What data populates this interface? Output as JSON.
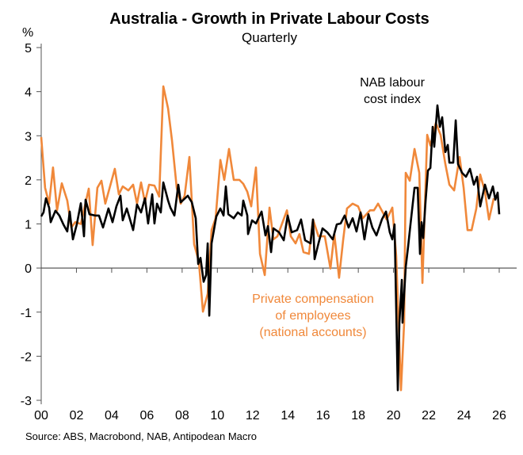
{
  "chart_data": {
    "type": "line",
    "title": "Australia - Growth in Private Labour Costs",
    "subtitle": "Quarterly",
    "ylabel": "%",
    "xlabel": "",
    "ylim": [
      -3,
      5
    ],
    "xlim": [
      2000,
      2026
    ],
    "y_ticks": [
      "5",
      "4",
      "3",
      "2",
      "1",
      "0",
      "-1",
      "-2",
      "-3"
    ],
    "y_tick_values": [
      5,
      4,
      3,
      2,
      1,
      0,
      -1,
      -2,
      -3
    ],
    "x_ticks": [
      "00",
      "02",
      "04",
      "06",
      "08",
      "10",
      "12",
      "14",
      "16",
      "18",
      "20",
      "22",
      "24",
      "26"
    ],
    "x_tick_values": [
      2000,
      2002,
      2004,
      2006,
      2008,
      2010,
      2012,
      2014,
      2016,
      2018,
      2020,
      2022,
      2024,
      2026
    ],
    "grid": false,
    "source": "Source: ABS, Macrobond, NAB, Antipodean Macro",
    "series": [
      {
        "name": "Private compensation of employees (national accounts)",
        "label_lines": [
          "Private compensation",
          "of employees",
          "(national accounts)"
        ],
        "color": "#f0883a",
        "x": [
          2000.0,
          2000.22,
          2000.45,
          2000.67,
          2000.9,
          2001.17,
          2001.48,
          2001.71,
          2001.93,
          2002.25,
          2002.7,
          2002.92,
          2003.19,
          2003.42,
          2003.64,
          2004.18,
          2004.41,
          2004.63,
          2004.95,
          2005.22,
          2005.44,
          2005.67,
          2005.89,
          2006.12,
          2006.43,
          2006.7,
          2006.93,
          2007.2,
          2007.42,
          2007.69,
          2007.92,
          2008.14,
          2008.41,
          2008.68,
          2008.95,
          2009.18,
          2009.45,
          2009.67,
          2009.9,
          2010.17,
          2010.39,
          2010.66,
          2010.93,
          2011.25,
          2011.47,
          2011.7,
          2011.92,
          2012.19,
          2012.42,
          2012.69,
          2012.96,
          2013.18,
          2013.41,
          2013.95,
          2014.17,
          2014.44,
          2014.66,
          2014.89,
          2015.2,
          2015.43,
          2015.74,
          2016.1,
          2016.42,
          2016.64,
          2016.91,
          2017.14,
          2017.36,
          2017.68,
          2017.99,
          2018.26,
          2018.67,
          2018.89,
          2019.12,
          2019.39,
          2019.61,
          2019.93,
          2020.15,
          2020.42,
          2020.6,
          2020.69,
          2020.92,
          2021.19,
          2021.46,
          2021.64,
          2021.91,
          2022.09,
          2022.4,
          2022.67,
          2022.94,
          2023.17,
          2023.44,
          2023.75,
          2023.98,
          2024.2,
          2024.43,
          2024.7,
          2024.92,
          2025.19,
          2025.42,
          2025.69
        ],
        "values": [
          2.97,
          1.82,
          1.46,
          2.28,
          1.31,
          1.92,
          1.53,
          0.92,
          1.04,
          1.0,
          1.8,
          0.52,
          1.82,
          1.98,
          1.46,
          2.25,
          1.67,
          1.85,
          1.76,
          1.89,
          1.46,
          1.94,
          1.49,
          1.89,
          1.87,
          1.62,
          4.12,
          3.62,
          2.9,
          1.82,
          1.46,
          1.64,
          2.52,
          0.54,
          0.14,
          -0.99,
          -0.58,
          0.86,
          1.13,
          2.45,
          2.0,
          2.7,
          2.0,
          2.0,
          1.91,
          1.73,
          1.4,
          2.28,
          0.32,
          -0.16,
          1.37,
          0.65,
          0.72,
          1.31,
          0.72,
          0.56,
          0.77,
          0.36,
          0.32,
          1.1,
          0.72,
          0.72,
          -0.01,
          0.77,
          -0.22,
          0.63,
          1.35,
          1.46,
          1.4,
          1.13,
          1.31,
          1.31,
          1.46,
          1.26,
          1.1,
          1.37,
          0.27,
          -2.77,
          -1.24,
          2.16,
          1.98,
          2.7,
          2.16,
          -0.34,
          3.02,
          2.78,
          3.29,
          3.02,
          2.36,
          1.89,
          1.76,
          2.52,
          1.82,
          0.86,
          0.86,
          1.35,
          2.12,
          1.73,
          1.1,
          1.58
        ]
      },
      {
        "name": "NAB labour cost index",
        "label_lines": [
          "NAB labour",
          "cost index"
        ],
        "color": "#000000",
        "x": [
          2000.0,
          2000.13,
          2000.27,
          2000.45,
          2000.54,
          2000.81,
          2001.03,
          2001.26,
          2001.48,
          2001.62,
          2001.8,
          2002.02,
          2002.25,
          2002.43,
          2002.52,
          2002.74,
          2003.06,
          2003.28,
          2003.51,
          2003.82,
          2004.05,
          2004.27,
          2004.5,
          2004.63,
          2004.86,
          2005.22,
          2005.44,
          2005.67,
          2005.89,
          2006.07,
          2006.3,
          2006.43,
          2006.57,
          2006.79,
          2006.93,
          2007.2,
          2007.33,
          2007.56,
          2007.78,
          2007.92,
          2008.32,
          2008.55,
          2008.77,
          2008.91,
          2009.04,
          2009.22,
          2009.36,
          2009.45,
          2009.54,
          2009.67,
          2009.94,
          2010.17,
          2010.35,
          2010.48,
          2010.62,
          2010.93,
          2011.16,
          2011.38,
          2011.47,
          2011.7,
          2011.74,
          2011.97,
          2012.19,
          2012.51,
          2012.73,
          2012.87,
          2013.05,
          2013.18,
          2013.5,
          2013.77,
          2013.99,
          2014.22,
          2014.53,
          2014.75,
          2014.98,
          2015.29,
          2015.43,
          2015.52,
          2015.74,
          2015.97,
          2016.24,
          2016.55,
          2016.78,
          2017.0,
          2017.23,
          2017.45,
          2017.68,
          2017.9,
          2018.13,
          2018.35,
          2018.58,
          2018.8,
          2019.03,
          2019.34,
          2019.57,
          2019.79,
          2019.93,
          2020.06,
          2020.24,
          2020.33,
          2020.47,
          2020.51,
          2020.69,
          2020.83,
          2020.96,
          2021.19,
          2021.37,
          2021.5,
          2021.59,
          2021.68,
          2021.82,
          2021.95,
          2022.09,
          2022.22,
          2022.31,
          2022.49,
          2022.63,
          2022.76,
          2022.94,
          2023.08,
          2023.17,
          2023.39,
          2023.53,
          2023.66,
          2023.89,
          2024.11,
          2024.34,
          2024.56,
          2024.74,
          2024.92,
          2025.19,
          2025.42,
          2025.64,
          2025.78,
          2025.91,
          2026.0
        ],
        "values": [
          1.17,
          1.26,
          1.58,
          1.37,
          1.04,
          1.3,
          1.19,
          0.99,
          0.83,
          1.28,
          0.65,
          0.99,
          1.47,
          0.72,
          1.55,
          1.22,
          1.19,
          1.19,
          0.92,
          1.35,
          1.04,
          1.4,
          1.64,
          1.08,
          1.35,
          0.86,
          1.44,
          1.26,
          1.58,
          1.01,
          1.67,
          1.01,
          1.46,
          1.26,
          1.94,
          1.53,
          1.37,
          1.19,
          1.89,
          1.49,
          1.64,
          1.49,
          1.13,
          0.09,
          0.23,
          -0.31,
          -0.16,
          0.56,
          -1.08,
          0.56,
          1.17,
          1.35,
          1.19,
          1.85,
          1.22,
          1.13,
          1.26,
          1.19,
          1.53,
          1.19,
          0.77,
          1.08,
          1.01,
          1.28,
          0.74,
          0.95,
          0.36,
          0.9,
          0.81,
          0.63,
          1.19,
          0.81,
          0.86,
          1.1,
          0.63,
          0.56,
          1.1,
          0.2,
          0.56,
          0.9,
          0.81,
          0.65,
          0.99,
          1.01,
          1.19,
          0.92,
          1.13,
          0.83,
          1.26,
          0.65,
          1.22,
          0.92,
          0.74,
          1.1,
          1.28,
          0.81,
          0.65,
          0.99,
          -2.77,
          -1.24,
          -0.27,
          -1.24,
          0.02,
          0.5,
          0.99,
          1.82,
          1.82,
          0.32,
          1.04,
          0.68,
          1.53,
          2.21,
          2.27,
          3.2,
          2.75,
          3.69,
          3.2,
          3.42,
          2.63,
          2.79,
          2.39,
          2.39,
          3.35,
          2.36,
          2.16,
          2.07,
          2.25,
          1.89,
          2.07,
          1.4,
          1.89,
          1.58,
          1.85,
          1.55,
          1.71,
          1.22
        ]
      }
    ]
  }
}
